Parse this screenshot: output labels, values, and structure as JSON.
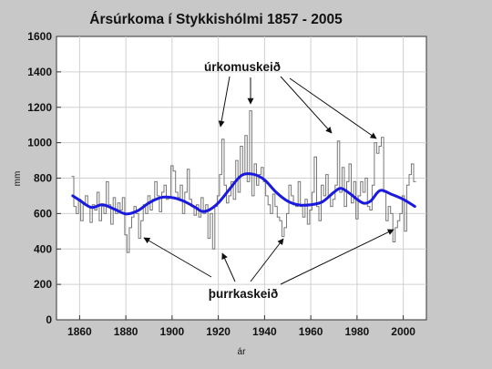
{
  "chart_data": {
    "type": "line",
    "title": "Ársúrkoma í Stykkishólmi 1857 - 2005",
    "xlabel": "ár",
    "ylabel": "mm",
    "xlim": [
      1850,
      2010
    ],
    "ylim": [
      0,
      1600
    ],
    "x_ticks": [
      1860,
      1880,
      1900,
      1920,
      1940,
      1960,
      1980,
      2000
    ],
    "y_ticks": [
      0,
      200,
      400,
      600,
      800,
      1000,
      1200,
      1400,
      1600
    ],
    "grid": true,
    "series": [
      {
        "role": "annual",
        "color": "#777777",
        "x": [
          1857,
          1858,
          1859,
          1860,
          1861,
          1862,
          1863,
          1864,
          1865,
          1866,
          1867,
          1868,
          1869,
          1870,
          1871,
          1872,
          1873,
          1874,
          1875,
          1876,
          1877,
          1878,
          1879,
          1880,
          1881,
          1882,
          1883,
          1884,
          1885,
          1886,
          1887,
          1888,
          1889,
          1890,
          1891,
          1892,
          1893,
          1894,
          1895,
          1896,
          1897,
          1898,
          1899,
          1900,
          1901,
          1902,
          1903,
          1904,
          1905,
          1906,
          1907,
          1908,
          1909,
          1910,
          1911,
          1912,
          1913,
          1914,
          1915,
          1916,
          1917,
          1918,
          1919,
          1920,
          1921,
          1922,
          1923,
          1924,
          1925,
          1926,
          1927,
          1928,
          1929,
          1930,
          1931,
          1932,
          1933,
          1934,
          1935,
          1936,
          1937,
          1938,
          1939,
          1940,
          1941,
          1942,
          1943,
          1944,
          1945,
          1946,
          1947,
          1948,
          1949,
          1950,
          1951,
          1952,
          1953,
          1954,
          1955,
          1956,
          1957,
          1958,
          1959,
          1960,
          1961,
          1962,
          1963,
          1964,
          1965,
          1966,
          1967,
          1968,
          1969,
          1970,
          1971,
          1972,
          1973,
          1974,
          1975,
          1976,
          1977,
          1978,
          1979,
          1980,
          1981,
          1982,
          1983,
          1984,
          1985,
          1986,
          1987,
          1988,
          1989,
          1990,
          1991,
          1992,
          1993,
          1994,
          1995,
          1996,
          1997,
          1998,
          1999,
          2000,
          2001,
          2002,
          2003,
          2004,
          2005
        ],
        "y": [
          810,
          640,
          600,
          680,
          560,
          650,
          700,
          640,
          550,
          650,
          620,
          720,
          560,
          640,
          600,
          780,
          650,
          540,
          690,
          600,
          660,
          620,
          690,
          480,
          380,
          520,
          580,
          640,
          600,
          460,
          560,
          650,
          600,
          700,
          620,
          680,
          780,
          700,
          610,
          720,
          760,
          680,
          690,
          870,
          840,
          720,
          690,
          760,
          600,
          720,
          850,
          680,
          640,
          590,
          650,
          580,
          690,
          600,
          650,
          460,
          600,
          400,
          640,
          700,
          820,
          1020,
          760,
          660,
          700,
          780,
          680,
          900,
          720,
          980,
          820,
          1040,
          780,
          1180,
          700,
          880,
          760,
          820,
          860,
          780,
          700,
          650,
          600,
          710,
          640,
          580,
          560,
          470,
          520,
          600,
          760,
          700,
          650,
          640,
          780,
          640,
          580,
          680,
          540,
          620,
          720,
          920,
          640,
          560,
          760,
          700,
          820,
          700,
          640,
          680,
          760,
          1010,
          720,
          860,
          640,
          780,
          880,
          660,
          780,
          570,
          700,
          780,
          720,
          800,
          640,
          620,
          760,
          1000,
          940,
          980,
          1030,
          720,
          560,
          640,
          600,
          440,
          520,
          560,
          600,
          700,
          500,
          760,
          820,
          880,
          780
        ]
      },
      {
        "role": "smoothed",
        "color": "#1a1adf",
        "x": [
          1857,
          1860,
          1865,
          1870,
          1875,
          1880,
          1885,
          1890,
          1895,
          1900,
          1905,
          1910,
          1913,
          1916,
          1920,
          1925,
          1930,
          1935,
          1940,
          1945,
          1950,
          1955,
          1960,
          1965,
          1970,
          1973,
          1977,
          1980,
          1983,
          1986,
          1990,
          1995,
          2000,
          2005
        ],
        "y": [
          700,
          675,
          635,
          650,
          625,
          598,
          615,
          660,
          690,
          690,
          670,
          635,
          612,
          620,
          660,
          740,
          815,
          822,
          790,
          720,
          670,
          648,
          650,
          666,
          720,
          742,
          712,
          680,
          658,
          672,
          730,
          708,
          680,
          640
        ]
      }
    ],
    "annotations": {
      "wet_label": "úrkomuskeið",
      "dry_label": "þurrkaskeið"
    }
  }
}
